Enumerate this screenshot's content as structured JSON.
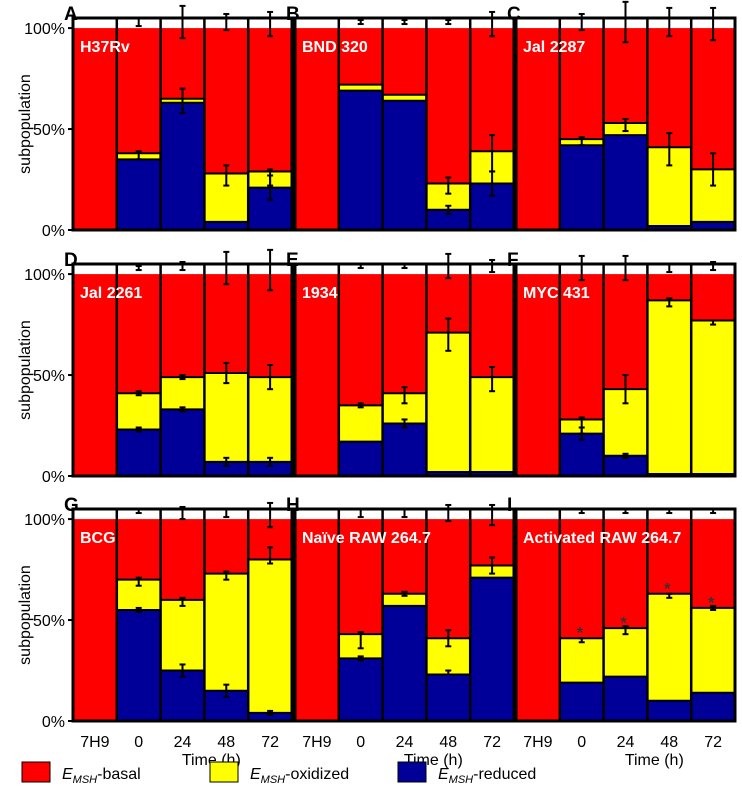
{
  "ylabel": "subpopulation",
  "xlabel": "Time (h)",
  "yticks": [
    "0%",
    "50%",
    "100%"
  ],
  "categories": [
    "7H9",
    "0",
    "24",
    "48",
    "72"
  ],
  "legend": [
    {
      "label": "E",
      "sub": "MSH",
      "rest": "-basal",
      "color": "#ff0000"
    },
    {
      "label": "E",
      "sub": "MSH",
      "rest": "-oxidized",
      "color": "#ffff00"
    },
    {
      "label": "E",
      "sub": "MSH",
      "rest": "-reduced",
      "color": "#000099"
    }
  ],
  "chart_data": [
    {
      "letter": "A",
      "title": "H37Rv",
      "type": "stacked-bar",
      "categories": [
        "7H9",
        "0",
        "24",
        "48",
        "72"
      ],
      "series": [
        {
          "name": "E_MSH-reduced",
          "values": [
            0,
            35,
            63,
            4,
            21
          ]
        },
        {
          "name": "E_MSH-oxidized",
          "values": [
            0,
            3,
            2,
            24,
            8
          ]
        },
        {
          "name": "E_MSH-basal",
          "values": [
            100,
            62,
            35,
            72,
            71
          ]
        }
      ],
      "errors": [
        {
          "cat": 1,
          "y": 103,
          "e": 2
        },
        {
          "cat": 1,
          "y": 37,
          "e": 2
        },
        {
          "cat": 2,
          "y": 103,
          "e": 8
        },
        {
          "cat": 2,
          "y": 64,
          "e": 6
        },
        {
          "cat": 3,
          "y": 103,
          "e": 4
        },
        {
          "cat": 3,
          "y": 27,
          "e": 5
        },
        {
          "cat": 4,
          "y": 102,
          "e": 6
        },
        {
          "cat": 4,
          "y": 26,
          "e": 4
        },
        {
          "cat": 4,
          "y": 21,
          "e": 6
        }
      ],
      "ylim": [
        0,
        105
      ]
    },
    {
      "letter": "B",
      "title": "BND 320",
      "type": "stacked-bar",
      "categories": [
        "7H9",
        "0",
        "24",
        "48",
        "72"
      ],
      "series": [
        {
          "name": "E_MSH-reduced",
          "values": [
            0,
            69,
            64,
            10,
            23
          ]
        },
        {
          "name": "E_MSH-oxidized",
          "values": [
            0,
            3,
            3,
            13,
            16
          ]
        },
        {
          "name": "E_MSH-basal",
          "values": [
            100,
            28,
            33,
            77,
            61
          ]
        }
      ],
      "errors": [
        {
          "cat": 1,
          "y": 103,
          "e": 1
        },
        {
          "cat": 2,
          "y": 103,
          "e": 1
        },
        {
          "cat": 3,
          "y": 103,
          "e": 1
        },
        {
          "cat": 3,
          "y": 22,
          "e": 4
        },
        {
          "cat": 3,
          "y": 10,
          "e": 2
        },
        {
          "cat": 4,
          "y": 102,
          "e": 6
        },
        {
          "cat": 4,
          "y": 38,
          "e": 9
        },
        {
          "cat": 4,
          "y": 23,
          "e": 6
        }
      ],
      "ylim": [
        0,
        105
      ]
    },
    {
      "letter": "C",
      "title": "Jal 2287",
      "type": "stacked-bar",
      "categories": [
        "7H9",
        "0",
        "24",
        "48",
        "72"
      ],
      "series": [
        {
          "name": "E_MSH-reduced",
          "values": [
            0,
            42,
            47,
            2,
            4
          ]
        },
        {
          "name": "E_MSH-oxidized",
          "values": [
            0,
            3,
            6,
            39,
            26
          ]
        },
        {
          "name": "E_MSH-basal",
          "values": [
            100,
            55,
            47,
            59,
            70
          ]
        }
      ],
      "errors": [
        {
          "cat": 1,
          "y": 103,
          "e": 4
        },
        {
          "cat": 1,
          "y": 44,
          "e": 2
        },
        {
          "cat": 2,
          "y": 103,
          "e": 10
        },
        {
          "cat": 2,
          "y": 52,
          "e": 3
        },
        {
          "cat": 3,
          "y": 103,
          "e": 7
        },
        {
          "cat": 3,
          "y": 40,
          "e": 8
        },
        {
          "cat": 4,
          "y": 102,
          "e": 8
        },
        {
          "cat": 4,
          "y": 30,
          "e": 8
        }
      ],
      "ylim": [
        0,
        105
      ]
    },
    {
      "letter": "D",
      "title": "Jal 2261",
      "type": "stacked-bar",
      "categories": [
        "7H9",
        "0",
        "24",
        "48",
        "72"
      ],
      "series": [
        {
          "name": "E_MSH-reduced",
          "values": [
            0,
            23,
            33,
            7,
            7
          ]
        },
        {
          "name": "E_MSH-oxidized",
          "values": [
            0,
            18,
            16,
            44,
            42
          ]
        },
        {
          "name": "E_MSH-basal",
          "values": [
            100,
            59,
            51,
            49,
            51
          ]
        }
      ],
      "errors": [
        {
          "cat": 1,
          "y": 103,
          "e": 1
        },
        {
          "cat": 1,
          "y": 41,
          "e": 1
        },
        {
          "cat": 1,
          "y": 23,
          "e": 1
        },
        {
          "cat": 2,
          "y": 104,
          "e": 2
        },
        {
          "cat": 2,
          "y": 49,
          "e": 1
        },
        {
          "cat": 2,
          "y": 33,
          "e": 1
        },
        {
          "cat": 3,
          "y": 103,
          "e": 8
        },
        {
          "cat": 3,
          "y": 51,
          "e": 5
        },
        {
          "cat": 3,
          "y": 7,
          "e": 2
        },
        {
          "cat": 4,
          "y": 102,
          "e": 10
        },
        {
          "cat": 4,
          "y": 49,
          "e": 6
        },
        {
          "cat": 4,
          "y": 7,
          "e": 2
        }
      ],
      "ylim": [
        0,
        105
      ]
    },
    {
      "letter": "E",
      "title": "1934",
      "type": "stacked-bar",
      "categories": [
        "7H9",
        "0",
        "24",
        "48",
        "72"
      ],
      "series": [
        {
          "name": "E_MSH-reduced",
          "values": [
            0,
            17,
            26,
            2,
            2
          ]
        },
        {
          "name": "E_MSH-oxidized",
          "values": [
            0,
            18,
            15,
            69,
            47
          ]
        },
        {
          "name": "E_MSH-basal",
          "values": [
            100,
            65,
            59,
            29,
            51
          ]
        }
      ],
      "errors": [
        {
          "cat": 1,
          "y": 104,
          "e": 1
        },
        {
          "cat": 1,
          "y": 35,
          "e": 1
        },
        {
          "cat": 2,
          "y": 104,
          "e": 1
        },
        {
          "cat": 2,
          "y": 40,
          "e": 4
        },
        {
          "cat": 2,
          "y": 26,
          "e": 2
        },
        {
          "cat": 3,
          "y": 104,
          "e": 6
        },
        {
          "cat": 3,
          "y": 70,
          "e": 8
        },
        {
          "cat": 4,
          "y": 104,
          "e": 3
        },
        {
          "cat": 4,
          "y": 48,
          "e": 6
        }
      ],
      "ylim": [
        0,
        105
      ]
    },
    {
      "letter": "F",
      "title": "MYC 431",
      "type": "stacked-bar",
      "categories": [
        "7H9",
        "0",
        "24",
        "48",
        "72"
      ],
      "series": [
        {
          "name": "E_MSH-reduced",
          "values": [
            0,
            21,
            10,
            1,
            1
          ]
        },
        {
          "name": "E_MSH-oxidized",
          "values": [
            0,
            7,
            33,
            86,
            76
          ]
        },
        {
          "name": "E_MSH-basal",
          "values": [
            100,
            72,
            57,
            13,
            23
          ]
        }
      ],
      "errors": [
        {
          "cat": 1,
          "y": 103,
          "e": 6
        },
        {
          "cat": 1,
          "y": 25,
          "e": 4
        },
        {
          "cat": 1,
          "y": 21,
          "e": 3
        },
        {
          "cat": 2,
          "y": 103,
          "e": 6
        },
        {
          "cat": 2,
          "y": 43,
          "e": 7
        },
        {
          "cat": 2,
          "y": 10,
          "e": 1
        },
        {
          "cat": 3,
          "y": 103,
          "e": 2
        },
        {
          "cat": 3,
          "y": 86,
          "e": 2
        },
        {
          "cat": 4,
          "y": 104,
          "e": 2
        },
        {
          "cat": 4,
          "y": 76,
          "e": 1
        }
      ],
      "ylim": [
        0,
        105
      ]
    },
    {
      "letter": "G",
      "title": "BCG",
      "type": "stacked-bar",
      "categories": [
        "7H9",
        "0",
        "24",
        "48",
        "72"
      ],
      "series": [
        {
          "name": "E_MSH-reduced",
          "values": [
            0,
            55,
            25,
            15,
            4
          ]
        },
        {
          "name": "E_MSH-oxidized",
          "values": [
            0,
            15,
            35,
            58,
            76
          ]
        },
        {
          "name": "E_MSH-basal",
          "values": [
            100,
            30,
            40,
            27,
            20
          ]
        }
      ],
      "errors": [
        {
          "cat": 1,
          "y": 104,
          "e": 1
        },
        {
          "cat": 1,
          "y": 69,
          "e": 2
        },
        {
          "cat": 1,
          "y": 55,
          "e": 1
        },
        {
          "cat": 2,
          "y": 103,
          "e": 3
        },
        {
          "cat": 2,
          "y": 59,
          "e": 2
        },
        {
          "cat": 2,
          "y": 25,
          "e": 3
        },
        {
          "cat": 3,
          "y": 103,
          "e": 2
        },
        {
          "cat": 3,
          "y": 72,
          "e": 2
        },
        {
          "cat": 3,
          "y": 15,
          "e": 3
        },
        {
          "cat": 4,
          "y": 102,
          "e": 6
        },
        {
          "cat": 4,
          "y": 82,
          "e": 4
        },
        {
          "cat": 4,
          "y": 4,
          "e": 1
        }
      ],
      "ylim": [
        0,
        105
      ]
    },
    {
      "letter": "H",
      "title": "Naïve RAW 264.7",
      "type": "stacked-bar",
      "categories": [
        "7H9",
        "0",
        "24",
        "48",
        "72"
      ],
      "series": [
        {
          "name": "E_MSH-reduced",
          "values": [
            0,
            31,
            57,
            23,
            71
          ]
        },
        {
          "name": "E_MSH-oxidized",
          "values": [
            0,
            12,
            6,
            18,
            6
          ]
        },
        {
          "name": "E_MSH-basal",
          "values": [
            100,
            57,
            37,
            59,
            23
          ]
        }
      ],
      "errors": [
        {
          "cat": 1,
          "y": 103,
          "e": 2
        },
        {
          "cat": 1,
          "y": 40,
          "e": 4
        },
        {
          "cat": 1,
          "y": 31,
          "e": 1
        },
        {
          "cat": 2,
          "y": 103,
          "e": 2
        },
        {
          "cat": 2,
          "y": 63,
          "e": 1
        },
        {
          "cat": 3,
          "y": 103,
          "e": 4
        },
        {
          "cat": 3,
          "y": 41,
          "e": 4
        },
        {
          "cat": 3,
          "y": 24,
          "e": 1
        },
        {
          "cat": 4,
          "y": 102,
          "e": 5
        },
        {
          "cat": 4,
          "y": 77,
          "e": 4
        }
      ],
      "ylim": [
        0,
        105
      ]
    },
    {
      "letter": "I",
      "title": "Activated RAW 264.7",
      "type": "stacked-bar",
      "categories": [
        "7H9",
        "0",
        "24",
        "48",
        "72"
      ],
      "series": [
        {
          "name": "E_MSH-reduced",
          "values": [
            0,
            19,
            22,
            10,
            14
          ]
        },
        {
          "name": "E_MSH-oxidized",
          "values": [
            0,
            22,
            24,
            53,
            42
          ]
        },
        {
          "name": "E_MSH-basal",
          "values": [
            100,
            59,
            54,
            37,
            44
          ]
        }
      ],
      "errors": [
        {
          "cat": 1,
          "y": 104,
          "e": 1
        },
        {
          "cat": 1,
          "y": 40,
          "e": 1
        },
        {
          "cat": 2,
          "y": 104,
          "e": 1
        },
        {
          "cat": 2,
          "y": 45,
          "e": 2
        },
        {
          "cat": 3,
          "y": 104,
          "e": 1
        },
        {
          "cat": 3,
          "y": 62,
          "e": 1
        },
        {
          "cat": 4,
          "y": 104,
          "e": 1
        },
        {
          "cat": 4,
          "y": 56,
          "e": 1
        }
      ],
      "stars": [
        {
          "cat": 1,
          "y": 43,
          "text": "*"
        },
        {
          "cat": 2,
          "y": 48,
          "text": "*"
        },
        {
          "cat": 3,
          "y": 65,
          "text": "*"
        },
        {
          "cat": 4,
          "y": 58,
          "text": "*"
        }
      ],
      "ylim": [
        0,
        105
      ]
    }
  ]
}
